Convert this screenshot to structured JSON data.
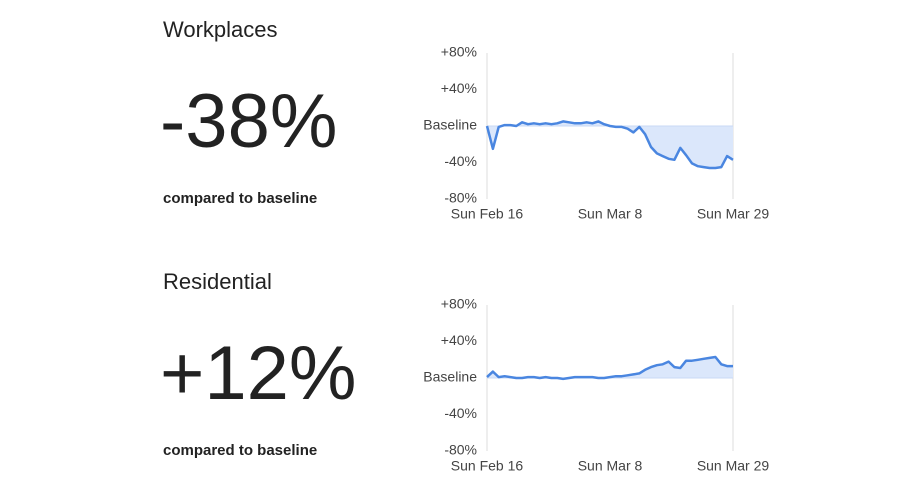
{
  "chart_data": [
    {
      "type": "area_line",
      "title": "Workplaces",
      "headline": "-38%",
      "subtitle": "compared to baseline",
      "categories": [
        "Sun Feb 16",
        null,
        null,
        null,
        null,
        null,
        null,
        null,
        null,
        null,
        null,
        null,
        null,
        null,
        null,
        null,
        null,
        null,
        null,
        null,
        null,
        "Sun Mar 8",
        null,
        null,
        null,
        null,
        null,
        null,
        null,
        null,
        null,
        null,
        null,
        null,
        null,
        null,
        null,
        null,
        null,
        null,
        null,
        null,
        "Sun Mar 29"
      ],
      "values": [
        0,
        -25,
        -1,
        1,
        1,
        0,
        4,
        2,
        3,
        2,
        3,
        2,
        3,
        5,
        4,
        3,
        3,
        4,
        3,
        5,
        2,
        0,
        -1,
        -1,
        -3,
        -7,
        -1,
        -9,
        -23,
        -30,
        -33,
        -36,
        -37,
        -24,
        -32,
        -41,
        -44,
        -45,
        -46,
        -46,
        -45,
        -33,
        -37
      ],
      "color": "#4a86e0",
      "fill": "#dbe7fb",
      "ylim": [
        -80,
        80
      ],
      "yticks": [
        {
          "value": -80,
          "label": "-80%"
        },
        {
          "value": -40,
          "label": "-40%"
        },
        {
          "value": 0,
          "label": "Baseline"
        },
        {
          "value": 40,
          "label": "+40%"
        },
        {
          "value": 80,
          "label": "+80%"
        }
      ]
    },
    {
      "type": "area_line",
      "title": "Residential",
      "headline": "+12%",
      "subtitle": "compared to baseline",
      "categories": [
        "Sun Feb 16",
        null,
        null,
        null,
        null,
        null,
        null,
        null,
        null,
        null,
        null,
        null,
        null,
        null,
        null,
        null,
        null,
        null,
        null,
        null,
        null,
        "Sun Mar 8",
        null,
        null,
        null,
        null,
        null,
        null,
        null,
        null,
        null,
        null,
        null,
        null,
        null,
        null,
        null,
        null,
        null,
        null,
        null,
        null,
        "Sun Mar 29"
      ],
      "values": [
        1,
        7,
        1,
        2,
        1,
        0,
        0,
        1,
        1,
        0,
        1,
        0,
        0,
        -1,
        0,
        1,
        1,
        1,
        1,
        0,
        0,
        1,
        2,
        2,
        3,
        4,
        5,
        9,
        12,
        14,
        15,
        18,
        12,
        11,
        19,
        19,
        20,
        21,
        22,
        23,
        15,
        13,
        13
      ],
      "color": "#4a86e0",
      "fill": "#dbe7fb",
      "ylim": [
        -80,
        80
      ],
      "yticks": [
        {
          "value": -80,
          "label": "-80%"
        },
        {
          "value": -40,
          "label": "-40%"
        },
        {
          "value": 0,
          "label": "Baseline"
        },
        {
          "value": 40,
          "label": "+40%"
        },
        {
          "value": 80,
          "label": "+80%"
        }
      ]
    }
  ]
}
